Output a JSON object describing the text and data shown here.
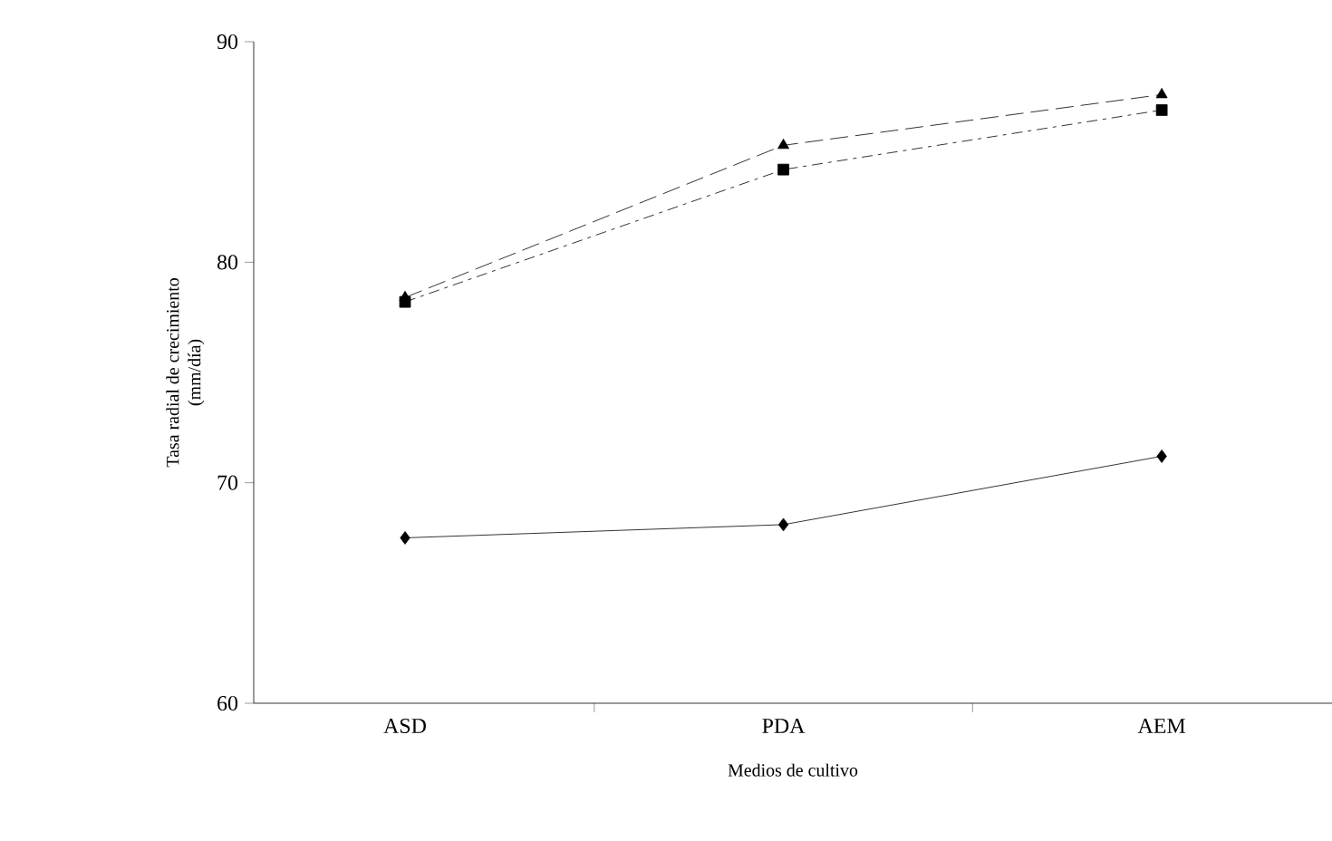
{
  "chart_data": {
    "type": "line",
    "xlabel": "Medios de cultivo",
    "ylabel": "Tasa radial de crecimiento\n(mm/día)",
    "categories": [
      "ASD",
      "PDA",
      "AEM"
    ],
    "series": [
      {
        "color": "#000000",
        "values": [
          67.5,
          68.1,
          71.2
        ],
        "marker": "diamond",
        "line_style": "solid"
      },
      {
        "color": "#000000",
        "values": [
          78.4,
          85.3,
          87.6
        ],
        "marker": "triangle",
        "line_style": "dashed"
      },
      {
        "color": "#000000",
        "values": [
          78.2,
          84.2,
          86.9
        ],
        "marker": "square",
        "line_style": "dashdot"
      }
    ],
    "ylim": [
      60,
      90
    ],
    "yticks": [
      60,
      70,
      80,
      90
    ],
    "grid": false
  }
}
